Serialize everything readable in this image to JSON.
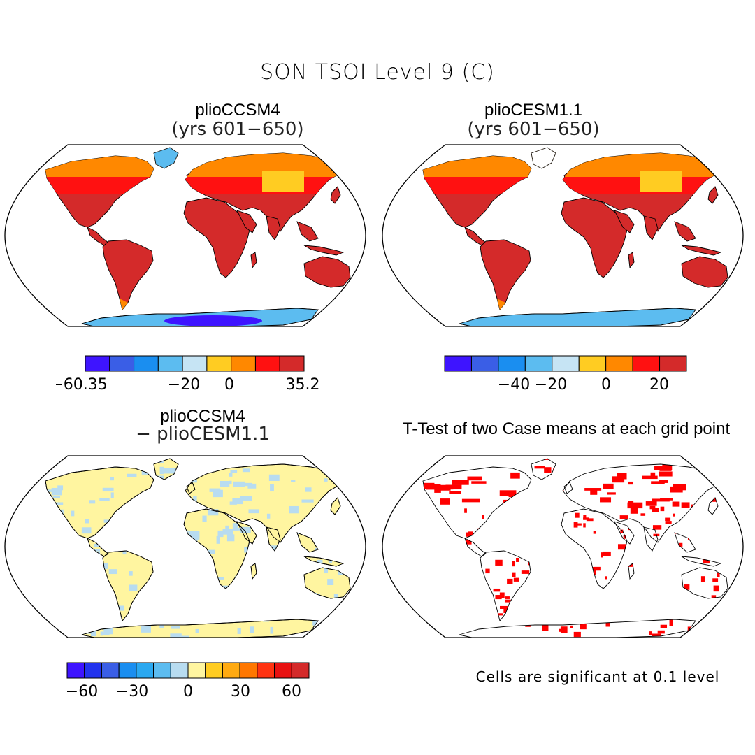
{
  "title": "SON TSOI Level 9 (C)",
  "panels": [
    {
      "id": "p1",
      "title": "plioCCSM4",
      "subtitle": "(yrs 601−650)"
    },
    {
      "id": "p2",
      "title": "plioCESM1.1",
      "subtitle": "(yrs 601−650)"
    },
    {
      "id": "p3",
      "title": "plioCCSM4",
      "subtitle": "− plioCESM1.1"
    },
    {
      "id": "p4",
      "title": "T-Test of two Case means at each grid point",
      "subtitle": ""
    }
  ],
  "colorbars": {
    "cb1": {
      "colors": [
        "#3e14ff",
        "#3a5ee6",
        "#1a8ef0",
        "#5cbcf0",
        "#c6e4f4",
        "#ffcc22",
        "#ff8800",
        "#ff1111",
        "#d42a2a"
      ],
      "labels": [
        "−60.35",
        "−20",
        "0",
        "35.2"
      ]
    },
    "cb2": {
      "colors": [
        "#3e14ff",
        "#3a5ee6",
        "#1a8ef0",
        "#5cbcf0",
        "#c6e4f4",
        "#ffcc22",
        "#ff8800",
        "#ff1111",
        "#d42a2a"
      ],
      "labels": [
        "−40",
        "−20",
        "0",
        "20"
      ]
    },
    "cb3": {
      "colors": [
        "#3e14ff",
        "#2233ee",
        "#3a5ee6",
        "#1a8ef0",
        "#2aa8f0",
        "#5cbcf0",
        "#b8dcf0",
        "#fff5a0",
        "#ffcc22",
        "#ffaa11",
        "#ff7700",
        "#ff3311",
        "#e81111",
        "#d42a2a"
      ],
      "labels": [
        "−60",
        "−30",
        "0",
        "30",
        "60"
      ]
    }
  },
  "map_fills": {
    "p1": {
      "land": "#d42a2a",
      "north": "#ff8800",
      "midnorth": "#ff1111",
      "antarctica": "#5cbcf0",
      "antarctica_core": "#3e14ff",
      "greenland": "#5cbcf0"
    },
    "p2": {
      "land": "#d42a2a",
      "north": "#ff8800",
      "midnorth": "#ff1111",
      "antarctica": "#5cbcf0",
      "antarctica_core": "#5cbcf0",
      "greenland": "#ffffff"
    },
    "p3": {
      "land": "#fff5a0",
      "patch": "#b8dcf0"
    },
    "p4": {
      "sig": "#ff0000"
    }
  },
  "footnote": "Cells are significant at 0.1 level"
}
